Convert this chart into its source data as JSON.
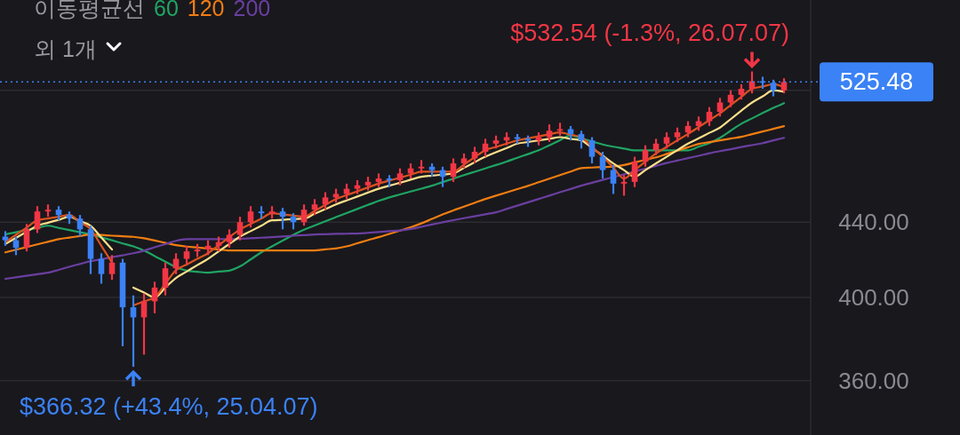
{
  "chart_data": {
    "type": "candlestick",
    "legend_title": "이동평균선",
    "log": true,
    "grid": "y",
    "tick_labels": "y",
    "categories": [
      null,
      null,
      null,
      null,
      null,
      null,
      null,
      null,
      null,
      null,
      null,
      null,
      null,
      null,
      null,
      null,
      null,
      null,
      null,
      null,
      null,
      null,
      null,
      null,
      null,
      null,
      null,
      null,
      null,
      null,
      null,
      null,
      null,
      null,
      null,
      null,
      null,
      null,
      null,
      null,
      null,
      null,
      null,
      null,
      null,
      null,
      null,
      null,
      null,
      null,
      null,
      null,
      null,
      null,
      null,
      null,
      null,
      null,
      null,
      null,
      null,
      null,
      null,
      null,
      null,
      null,
      null,
      null,
      null,
      null,
      null,
      null,
      null,
      null
    ],
    "ylim": [
      336,
      583
    ],
    "yticks": [
      {
        "value": 360,
        "label": "360.00"
      },
      {
        "value": 400,
        "label": "400.00"
      },
      {
        "value": 440,
        "label": "440.00"
      },
      {
        "value": 520,
        "label": null
      }
    ],
    "ohlc": [
      [
        432,
        435,
        427,
        430
      ],
      [
        430,
        432,
        422,
        426
      ],
      [
        426,
        439,
        424,
        436
      ],
      [
        436,
        449,
        434,
        446
      ],
      [
        446,
        450,
        443,
        447
      ],
      [
        447,
        449,
        441,
        444
      ],
      [
        444,
        446,
        439,
        442
      ],
      [
        442,
        444,
        432,
        436
      ],
      [
        436,
        438,
        412,
        420
      ],
      [
        420,
        423,
        407,
        412
      ],
      [
        412,
        422,
        409,
        418
      ],
      [
        418,
        420,
        376,
        395
      ],
      [
        395,
        401,
        366.32,
        390
      ],
      [
        390,
        402,
        372,
        398
      ],
      [
        398,
        408,
        392,
        405
      ],
      [
        405,
        418,
        401,
        415
      ],
      [
        415,
        423,
        412,
        420
      ],
      [
        420,
        427,
        417,
        424
      ],
      [
        424,
        428,
        421,
        425
      ],
      [
        425,
        430,
        422,
        427
      ],
      [
        427,
        432,
        424,
        429
      ],
      [
        429,
        436,
        426,
        433
      ],
      [
        433,
        443,
        430,
        440
      ],
      [
        440,
        449,
        437,
        446
      ],
      [
        446,
        449,
        442,
        445
      ],
      [
        445,
        449,
        442,
        446
      ],
      [
        446,
        448,
        436,
        443
      ],
      [
        443,
        445,
        436,
        440
      ],
      [
        440,
        450,
        438,
        447
      ],
      [
        447,
        453,
        444,
        450
      ],
      [
        450,
        457,
        447,
        454
      ],
      [
        454,
        459,
        451,
        456
      ],
      [
        456,
        462,
        453,
        459
      ],
      [
        459,
        464,
        456,
        461
      ],
      [
        461,
        466,
        458,
        463
      ],
      [
        463,
        468,
        460,
        465
      ],
      [
        465,
        467,
        460,
        464
      ],
      [
        464,
        471,
        461,
        468
      ],
      [
        468,
        474,
        465,
        471
      ],
      [
        471,
        476,
        468,
        472
      ],
      [
        472,
        474,
        466,
        470
      ],
      [
        470,
        472,
        460,
        466
      ],
      [
        466,
        477,
        463,
        474
      ],
      [
        474,
        480,
        471,
        477
      ],
      [
        477,
        484,
        474,
        481
      ],
      [
        481,
        489,
        478,
        486
      ],
      [
        486,
        491,
        483,
        488
      ],
      [
        488,
        493,
        485,
        490
      ],
      [
        490,
        492,
        486,
        489
      ],
      [
        489,
        491,
        484,
        488
      ],
      [
        488,
        493,
        485,
        490
      ],
      [
        490,
        498,
        487,
        494
      ],
      [
        494,
        499,
        491,
        495
      ],
      [
        495,
        497,
        488,
        492
      ],
      [
        492,
        494,
        483,
        488
      ],
      [
        488,
        490,
        474,
        478
      ],
      [
        478,
        481,
        465,
        470
      ],
      [
        470,
        473,
        456,
        462
      ],
      [
        462,
        467,
        455,
        463
      ],
      [
        463,
        478,
        460,
        475
      ],
      [
        475,
        485,
        472,
        482
      ],
      [
        482,
        489,
        479,
        486
      ],
      [
        486,
        493,
        483,
        490
      ],
      [
        490,
        496,
        487,
        493
      ],
      [
        493,
        500,
        490,
        497
      ],
      [
        497,
        503,
        494,
        500
      ],
      [
        500,
        509,
        497,
        506
      ],
      [
        506,
        515,
        503,
        512
      ],
      [
        512,
        520,
        509,
        517
      ],
      [
        517,
        524,
        514,
        521
      ],
      [
        521,
        532.54,
        518,
        526
      ],
      [
        526,
        529,
        521,
        525
      ],
      [
        525,
        527,
        516,
        520
      ],
      [
        520,
        528,
        518,
        525.48
      ]
    ],
    "series": [
      {
        "type": "line",
        "name": "60",
        "color": "#1fa463",
        "values": [
          433.2,
          434.4,
          435.6,
          436.8,
          438,
          436.8,
          435.6,
          434.4,
          433.2,
          431.6,
          430,
          428.3,
          426.7,
          424.4,
          421.5,
          418.5,
          415.6,
          413.8,
          413.2,
          412.7,
          413.3,
          413.8,
          416,
          419.7,
          423.5,
          426.7,
          429.8,
          433,
          435.8,
          438.1,
          440.5,
          442.8,
          445.1,
          447.4,
          449.7,
          452,
          454,
          455.7,
          457.4,
          459.1,
          460.8,
          462.9,
          464.9,
          467,
          469,
          471,
          473,
          475.1,
          477.4,
          479.6,
          481.9,
          485,
          488.1,
          491.2,
          489.3,
          487.4,
          485.5,
          484.1,
          483,
          481.9,
          481.9,
          481.9,
          481.9,
          481.9,
          481.9,
          484.1,
          486.3,
          489.6,
          494,
          498.4,
          501.8,
          505.2,
          508.5,
          511.6
        ]
      },
      {
        "type": "line",
        "name": "120",
        "color": "#f07d12",
        "values": [
          423.5,
          424.9,
          426.3,
          427.8,
          429.2,
          430.6,
          431.5,
          432.3,
          433.2,
          432.9,
          432.5,
          432.2,
          431.9,
          431.1,
          429.9,
          428.6,
          427.4,
          426.6,
          426.1,
          425.5,
          425,
          424.5,
          424.5,
          424.5,
          424.5,
          424.5,
          424.5,
          424.5,
          424.5,
          424.5,
          425.1,
          425.6,
          426.7,
          428.4,
          430.1,
          431.7,
          433.5,
          435.3,
          437.1,
          439.3,
          441.8,
          444.3,
          446.6,
          448.7,
          450.9,
          453.1,
          455,
          456.9,
          458.8,
          460.7,
          462.8,
          464.9,
          467,
          469.1,
          471.2,
          471.5,
          471.8,
          472.1,
          473,
          474.6,
          476.1,
          477.6,
          479.7,
          481.7,
          483.8,
          485.8,
          486.9,
          488,
          489.1,
          490.2,
          491.9,
          493.5,
          495.2,
          496.9
        ]
      },
      {
        "type": "line",
        "name": "200",
        "color": "#6a3fa0",
        "values": [
          409.5,
          410.3,
          411.1,
          411.9,
          412.7,
          414.2,
          415.8,
          417.3,
          418.8,
          419.8,
          420.9,
          421.9,
          423,
          424.4,
          426.2,
          427.9,
          429.7,
          430.6,
          430.6,
          430.6,
          430.6,
          430.6,
          430.8,
          431.1,
          431.4,
          431.7,
          432.1,
          432.5,
          432.8,
          433.2,
          433.3,
          433.5,
          433.6,
          433.7,
          434.1,
          434.5,
          435,
          435.4,
          436.2,
          437.4,
          438.7,
          439.9,
          441.1,
          442.2,
          443.3,
          444.4,
          445.5,
          447.4,
          449.3,
          451.2,
          453.1,
          455,
          457,
          458.9,
          460.8,
          462.5,
          464.2,
          465.8,
          467.5,
          469.2,
          470.8,
          472.5,
          474.2,
          475.7,
          477.2,
          478.6,
          480.1,
          481.4,
          482.6,
          483.9,
          485.1,
          486.3,
          488,
          489.6
        ]
      },
      {
        "type": "line",
        "color": "#fde08a",
        "values": [
          428,
          431.3,
          434.7,
          438,
          439.7,
          441.3,
          443,
          440.5,
          438,
          431.5,
          425,
          null,
          405,
          402.5,
          400,
          405,
          410,
          413.3,
          416.7,
          420,
          424,
          428,
          432,
          435,
          438,
          441,
          441.3,
          441.7,
          442,
          444.7,
          447.3,
          450,
          452.3,
          454.5,
          456.8,
          459,
          460.8,
          462.5,
          464.3,
          466,
          466.7,
          467.3,
          468,
          471.3,
          474.7,
          478,
          480.7,
          483.3,
          486,
          487,
          488,
          489,
          490,
          489,
          488,
          483.3,
          478.7,
          474,
          470,
          466,
          470,
          474,
          478,
          482,
          486,
          489.3,
          492.7,
          496,
          501.3,
          506.7,
          512,
          516,
          520,
          519
        ]
      },
      {
        "type": "line",
        "color": "#d9531e",
        "values": [
          429,
          433,
          437,
          441,
          442,
          443,
          444,
          440,
          436,
          427,
          418,
          null,
          396,
          398,
          400,
          407,
          414,
          417,
          420,
          423,
          427.3,
          431.7,
          436,
          439,
          442,
          445,
          444.3,
          443.7,
          443,
          446.3,
          449.7,
          453,
          455.3,
          457.5,
          459.8,
          462,
          463.8,
          465.5,
          467.3,
          469,
          469,
          469,
          469,
          473.3,
          477.7,
          482,
          484,
          486,
          488,
          489.3,
          490.5,
          491.8,
          493,
          491.5,
          490,
          484,
          478,
          471.5,
          465,
          470,
          475,
          480,
          484,
          488,
          492,
          496.3,
          500.7,
          505,
          510.3,
          515.7,
          521,
          522.5,
          524,
          522
        ]
      }
    ],
    "ref_lines": [
      {
        "axis": "y",
        "value": 525.48,
        "label": "525.48",
        "color": "#3b82f6",
        "line_style": "dotted"
      }
    ],
    "annotations": [
      "외 1개",
      "$532.54 (-1.3%, 26.07.07)",
      "$366.32 (+43.4%, 25.04.07)"
    ]
  }
}
